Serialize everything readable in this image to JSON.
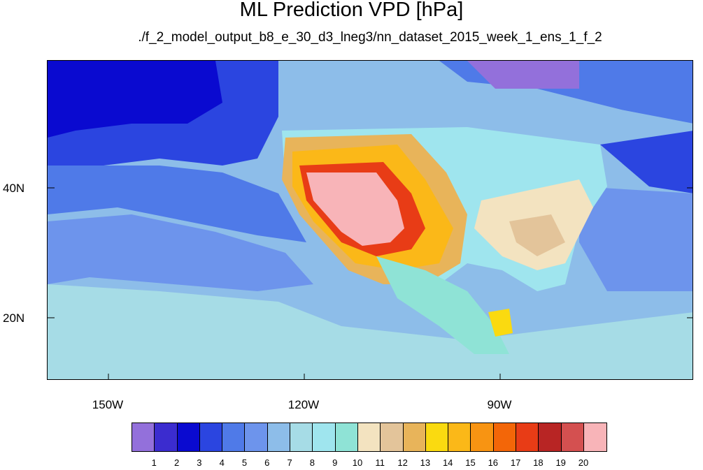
{
  "title": "ML Prediction VPD [hPa]",
  "subtitle": "./f_2_model_output_b8_e_30_d3_lneg3/nn_dataset_2015_week_1_ens_1_f_2",
  "map": {
    "lat_labels": [
      "40N",
      "20N"
    ],
    "lon_labels": [
      "150W",
      "120W",
      "90W"
    ]
  },
  "colorbar": {
    "labels": [
      "1",
      "2",
      "3",
      "4",
      "5",
      "6",
      "7",
      "8",
      "9",
      "10",
      "11",
      "12",
      "13",
      "14",
      "15",
      "16",
      "17",
      "18",
      "19",
      "20"
    ],
    "colors": [
      "#9370db",
      "#3b2ccf",
      "#0a0ad0",
      "#2b45e0",
      "#4f7ae8",
      "#6d94ec",
      "#8dbde9",
      "#a6dce6",
      "#9fe5ee",
      "#8fe3d6",
      "#f3e3c0",
      "#e3c49a",
      "#e8b45a",
      "#fada10",
      "#fbb818",
      "#f89412",
      "#f36608",
      "#e83c16",
      "#b82524",
      "#d45050",
      "#f8b4b8"
    ]
  }
}
